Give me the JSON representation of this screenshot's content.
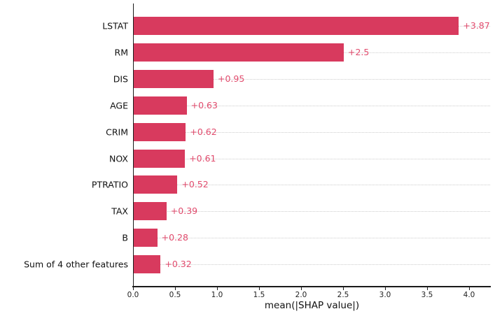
{
  "chart_data": {
    "type": "bar",
    "orientation": "horizontal",
    "title": "",
    "xlabel": "mean(|SHAP value|)",
    "ylabel": "",
    "categories": [
      "LSTAT",
      "RM",
      "DIS",
      "AGE",
      "CRIM",
      "NOX",
      "PTRATIO",
      "TAX",
      "B",
      "Sum of 4 other features"
    ],
    "values": [
      3.87,
      2.5,
      0.95,
      0.63,
      0.62,
      0.61,
      0.52,
      0.39,
      0.28,
      0.32
    ],
    "value_labels": [
      "+3.87",
      "+2.5",
      "+0.95",
      "+0.63",
      "+0.62",
      "+0.61",
      "+0.52",
      "+0.39",
      "+0.28",
      "+0.32"
    ],
    "xlim": [
      0.0,
      4.25
    ],
    "xticks": [
      "0.0",
      "0.5",
      "1.0",
      "1.5",
      "2.0",
      "2.5",
      "3.0",
      "3.5",
      "4.0"
    ],
    "xtick_values": [
      0,
      0.5,
      1,
      1.5,
      2,
      2.5,
      3,
      3.5,
      4
    ],
    "grid": "horizontal-dotted",
    "legend": "none",
    "bar_color": "#d83a5e",
    "value_label_color": "#e14b6d",
    "text_color": "#111111",
    "axis_color": "#1a1a1a",
    "gridline_color": "#cdcdcd",
    "background": "#ffffff"
  }
}
